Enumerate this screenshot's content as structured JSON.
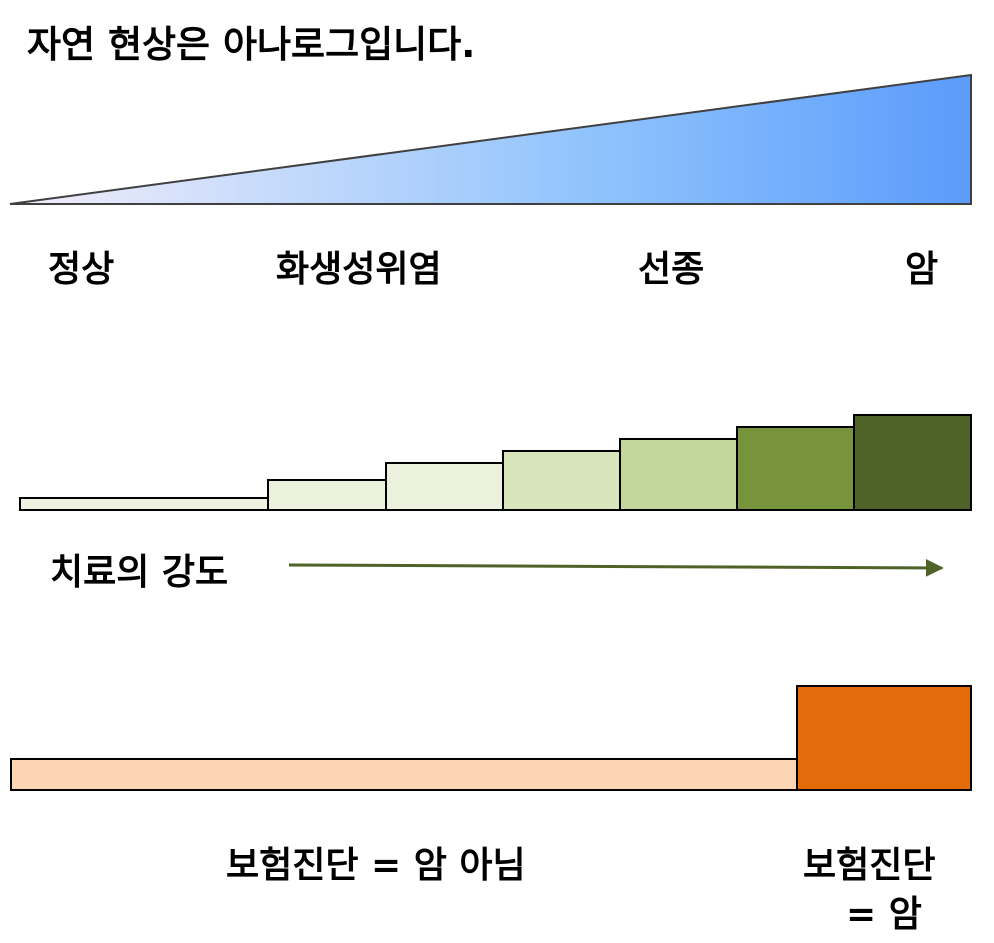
{
  "title": "자연 현상은 아나로그입니다.",
  "spectrum": {
    "stages": [
      "정상",
      "화생성위염",
      "선종",
      "암"
    ],
    "gradient_colors": [
      "#f3eefa",
      "#8ec2fc",
      "#5b9bfb"
    ]
  },
  "treatment": {
    "label": "치료의 강도",
    "levels": [
      {
        "level": 1,
        "color": "#eef2e2"
      },
      {
        "level": 2,
        "color": "#ebf1dd"
      },
      {
        "level": 3,
        "color": "#ebf1dd"
      },
      {
        "level": 4,
        "color": "#d8e4bc"
      },
      {
        "level": 5,
        "color": "#c3d69b"
      },
      {
        "level": 6,
        "color": "#77933c"
      },
      {
        "level": 7,
        "color": "#4f6228"
      }
    ],
    "arrow_color": "#4f6228"
  },
  "insurance": {
    "not_cancer_label": "보험진단 = 암 아님",
    "cancer_label_line1": "보험진단",
    "cancer_label_line2": "= 암",
    "not_cancer_color": "#fcd5b5",
    "cancer_color": "#e46c0a"
  }
}
